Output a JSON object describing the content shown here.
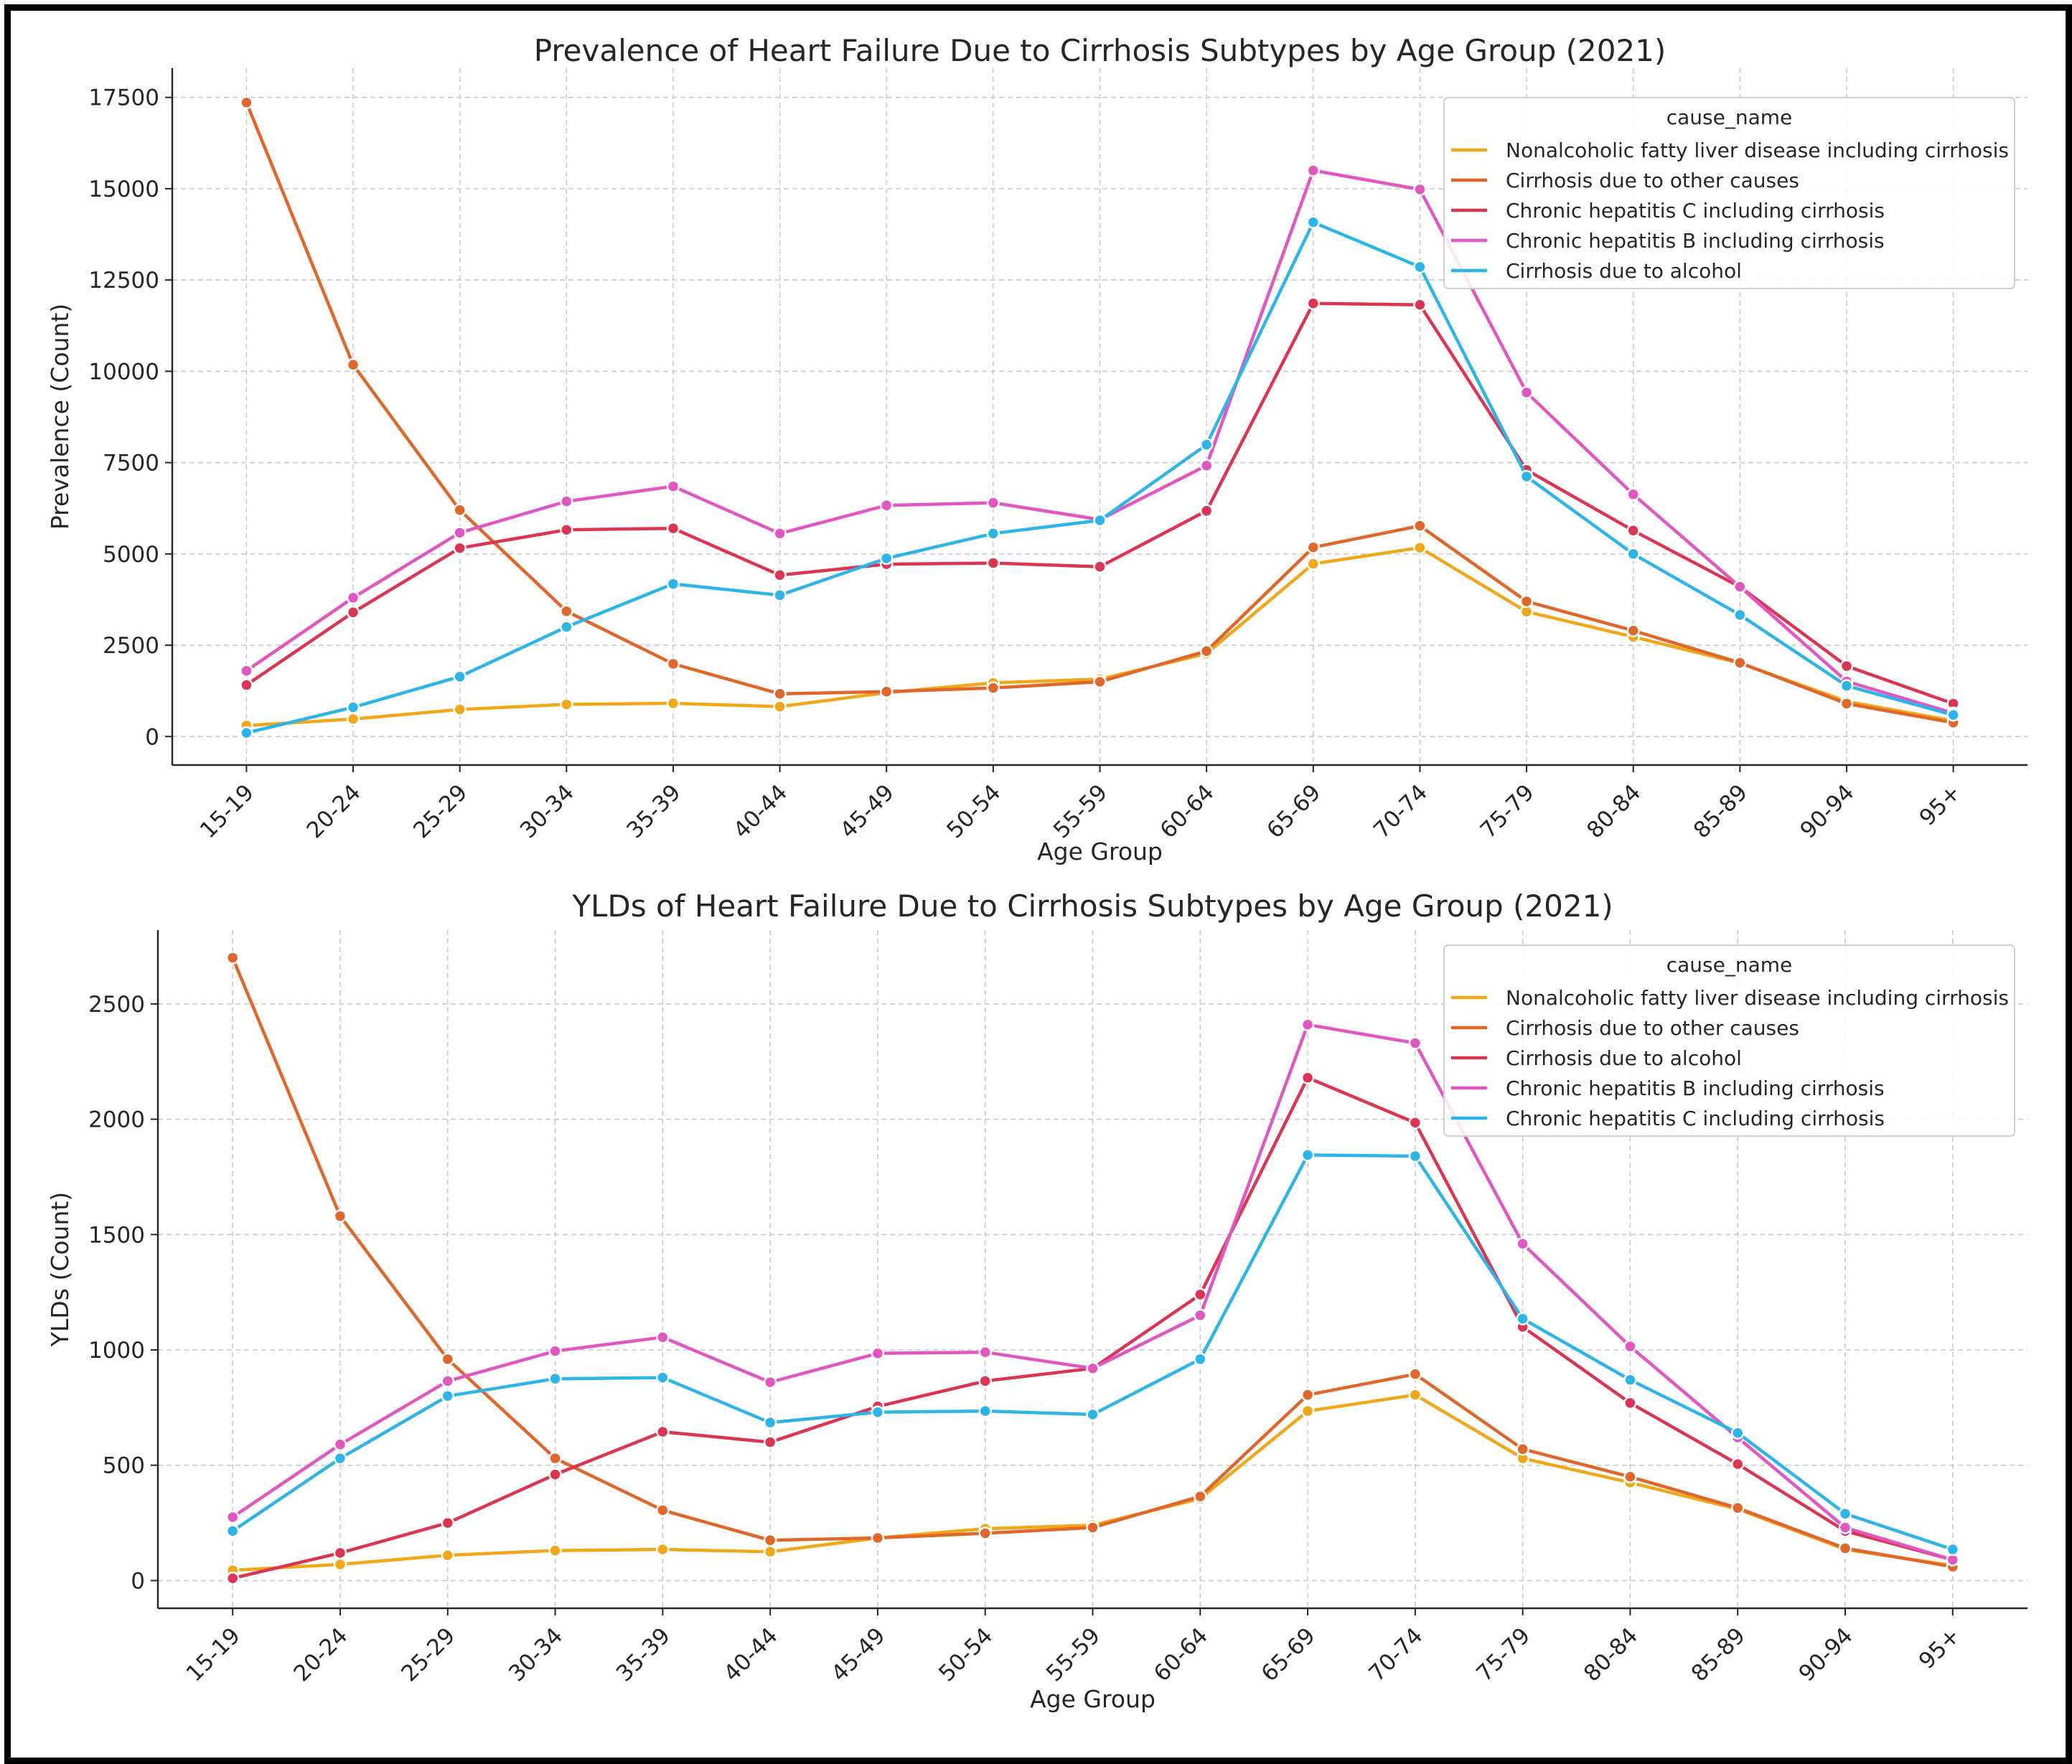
{
  "chart_data": [
    {
      "type": "line",
      "title": "Prevalence of Heart Failure Due to Cirrhosis Subtypes by Age Group (2021)",
      "xlabel": "Age Group",
      "ylabel": "Prevalence (Count)",
      "ylim": [
        -780,
        18300
      ],
      "yticks": [
        0,
        2500,
        5000,
        7500,
        10000,
        12500,
        15000,
        17500
      ],
      "grid": true,
      "legend_title": "cause_name",
      "legend_position": "top-right",
      "categories": [
        "15-19",
        "20-24",
        "25-29",
        "30-34",
        "35-39",
        "40-44",
        "45-49",
        "50-54",
        "55-59",
        "60-64",
        "65-69",
        "70-74",
        "75-79",
        "80-84",
        "85-89",
        "90-94",
        "95+"
      ],
      "series": [
        {
          "name": "Nonalcoholic fatty liver disease including cirrhosis",
          "color": "#f0a818",
          "values": [
            300,
            480,
            740,
            880,
            910,
            820,
            1200,
            1470,
            1570,
            2270,
            4730,
            5170,
            3420,
            2730,
            2010,
            960,
            430
          ]
        },
        {
          "name": "Cirrhosis due to other causes",
          "color": "#e0662a",
          "values": [
            17360,
            10180,
            6200,
            3430,
            1990,
            1170,
            1230,
            1330,
            1500,
            2340,
            5180,
            5770,
            3700,
            2900,
            2020,
            900,
            380
          ]
        },
        {
          "name": "Chronic hepatitis C including cirrhosis",
          "color": "#dc3451",
          "values": [
            1410,
            3400,
            5160,
            5660,
            5700,
            4420,
            4720,
            4750,
            4650,
            6180,
            11860,
            11820,
            7300,
            5640,
            4100,
            1930,
            900
          ]
        },
        {
          "name": "Chronic hepatitis B including cirrhosis",
          "color": "#e156c0",
          "values": [
            1800,
            3800,
            5580,
            6440,
            6850,
            5560,
            6330,
            6400,
            5940,
            7420,
            15500,
            14980,
            9420,
            6630,
            4100,
            1510,
            640
          ]
        },
        {
          "name": "Cirrhosis due to alcohol",
          "color": "#2db4e8",
          "values": [
            100,
            800,
            1640,
            3000,
            4180,
            3870,
            4880,
            5560,
            5920,
            7990,
            14080,
            12860,
            7120,
            5000,
            3330,
            1390,
            590
          ]
        }
      ]
    },
    {
      "type": "line",
      "title": "YLDs of Heart Failure Due to Cirrhosis Subtypes by Age Group (2021)",
      "xlabel": "Age Group",
      "ylabel": "YLDs (Count)",
      "ylim": [
        -120,
        2820
      ],
      "yticks": [
        0,
        500,
        1000,
        1500,
        2000,
        2500
      ],
      "grid": true,
      "legend_title": "cause_name",
      "legend_position": "top-right",
      "categories": [
        "15-19",
        "20-24",
        "25-29",
        "30-34",
        "35-39",
        "40-44",
        "45-49",
        "50-54",
        "55-59",
        "60-64",
        "65-69",
        "70-74",
        "75-79",
        "80-84",
        "85-89",
        "90-94",
        "95+"
      ],
      "series": [
        {
          "name": "Nonalcoholic fatty liver disease including cirrhosis",
          "color": "#f0a818",
          "values": [
            45,
            70,
            110,
            130,
            135,
            125,
            185,
            225,
            240,
            355,
            735,
            805,
            530,
            425,
            310,
            135,
            65
          ]
        },
        {
          "name": "Cirrhosis due to other causes",
          "color": "#e0662a",
          "values": [
            2700,
            1580,
            960,
            530,
            305,
            175,
            185,
            205,
            230,
            365,
            805,
            895,
            570,
            450,
            315,
            140,
            60
          ]
        },
        {
          "name": "Cirrhosis due to alcohol",
          "color": "#dc3451",
          "values": [
            10,
            120,
            250,
            460,
            645,
            600,
            755,
            865,
            920,
            1240,
            2180,
            1985,
            1100,
            770,
            505,
            215,
            90
          ]
        },
        {
          "name": "Chronic hepatitis B including cirrhosis",
          "color": "#e156c0",
          "values": [
            275,
            590,
            865,
            995,
            1055,
            860,
            985,
            990,
            920,
            1150,
            2410,
            2330,
            1460,
            1015,
            620,
            230,
            90
          ]
        },
        {
          "name": "Chronic hepatitis C including cirrhosis",
          "color": "#2db4e8",
          "values": [
            215,
            530,
            800,
            875,
            880,
            685,
            730,
            735,
            720,
            960,
            1845,
            1840,
            1135,
            870,
            640,
            290,
            135
          ]
        }
      ]
    }
  ]
}
